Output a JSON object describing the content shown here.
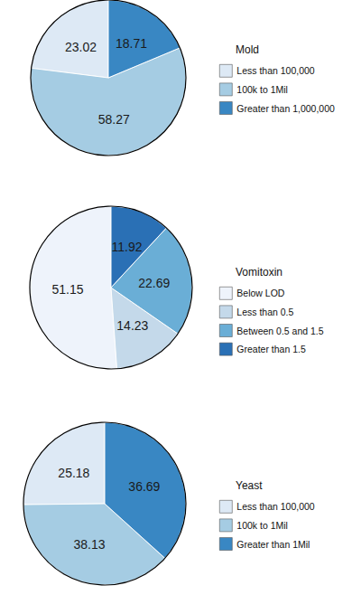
{
  "chart_data": [
    {
      "type": "pie",
      "title": "Mold",
      "categories": [
        "Less than 100,000",
        "100k to 1Mil",
        "Greater than 1,000,000"
      ],
      "values": [
        23.02,
        58.27,
        18.71
      ],
      "colors": [
        "#dde9f5",
        "#a5cce3",
        "#3987c3"
      ],
      "data_labels": true,
      "legend": "right"
    },
    {
      "type": "pie",
      "title": "Vomitoxin",
      "categories": [
        "Below LOD",
        "Less than 0.5",
        "Between 0.5 and 1.5",
        "Greater than 1.5"
      ],
      "values": [
        51.15,
        14.23,
        22.69,
        11.92
      ],
      "colors": [
        "#eef3fb",
        "#c4d9ea",
        "#6aaed6",
        "#2a70b5"
      ],
      "data_labels": true,
      "legend": "right"
    },
    {
      "type": "pie",
      "title": "Yeast",
      "categories": [
        "Less than 100,000",
        "100k to 1Mil",
        "Greater than 1Mil"
      ],
      "values": [
        25.18,
        38.13,
        36.69
      ],
      "colors": [
        "#dde9f5",
        "#a5cce3",
        "#3987c3"
      ],
      "data_labels": true,
      "legend": "right"
    }
  ]
}
